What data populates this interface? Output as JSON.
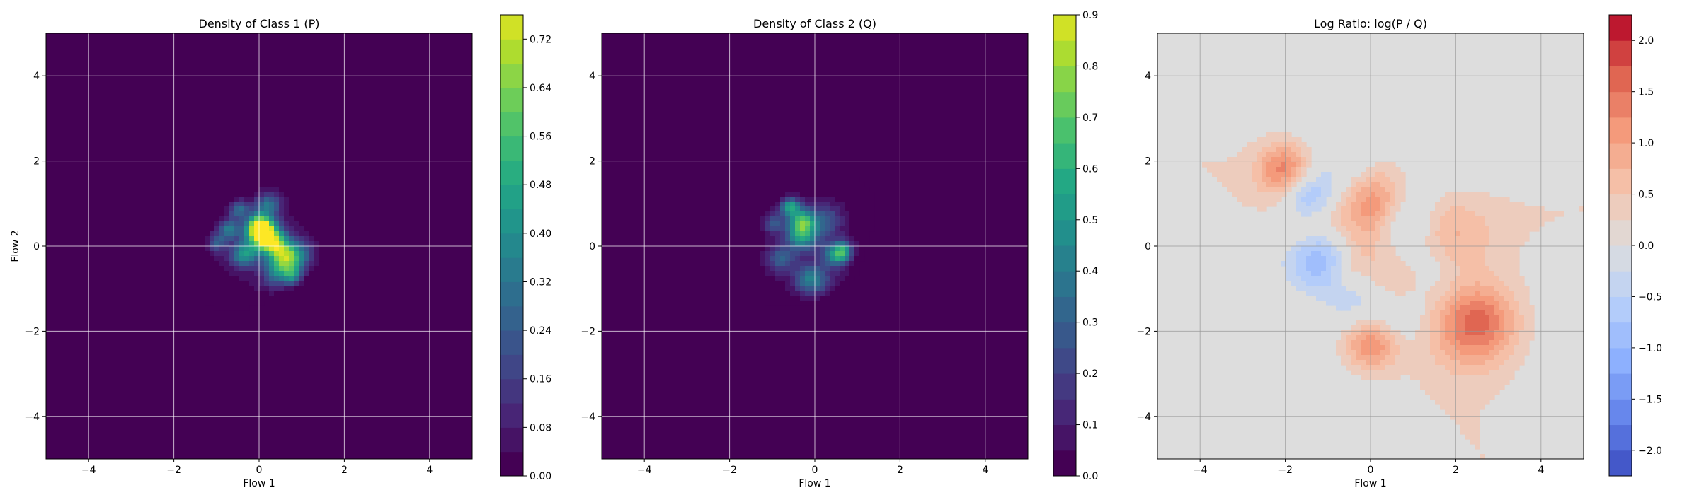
{
  "chart_data": [
    {
      "type": "heatmap",
      "title": "Density of Class 1 (P)",
      "xlabel": "Flow 1",
      "ylabel": "Flow 2",
      "xlim": [
        -5,
        5
      ],
      "ylim": [
        -5,
        5
      ],
      "xticks": [
        -4,
        -2,
        0,
        2,
        4
      ],
      "yticks": [
        -4,
        -2,
        0,
        2,
        4
      ],
      "xtick_labels": [
        "−4",
        "−2",
        "0",
        "2",
        "4"
      ],
      "ytick_labels": [
        "−4",
        "−2",
        "0",
        "2",
        "4"
      ],
      "grid": true,
      "colormap": "viridis",
      "colorbar": {
        "range": [
          0,
          0.76
        ],
        "ticks": [
          0.0,
          0.08,
          0.16,
          0.24,
          0.32,
          0.4,
          0.48,
          0.56,
          0.64,
          0.72
        ],
        "tick_labels": [
          "0.00",
          "0.08",
          "0.16",
          "0.24",
          "0.32",
          "0.40",
          "0.48",
          "0.56",
          "0.64",
          "0.72"
        ],
        "levels": 19
      },
      "clusters": [
        {
          "x": -0.5,
          "y": 0.9,
          "amp": 0.38
        },
        {
          "x": 0.0,
          "y": 0.45,
          "amp": 0.55
        },
        {
          "x": 0.1,
          "y": 0.25,
          "amp": 0.6
        },
        {
          "x": -0.7,
          "y": 0.4,
          "amp": 0.35
        },
        {
          "x": 0.35,
          "y": 0.05,
          "amp": 0.4
        },
        {
          "x": 0.7,
          "y": -0.25,
          "amp": 0.55
        },
        {
          "x": 0.85,
          "y": -0.75,
          "amp": 0.58
        },
        {
          "x": -0.35,
          "y": -0.2,
          "amp": 0.38
        },
        {
          "x": 0.45,
          "y": -0.6,
          "amp": 0.32
        },
        {
          "x": -1.0,
          "y": 0.1,
          "amp": 0.25
        },
        {
          "x": 0.2,
          "y": 1.0,
          "amp": 0.3
        },
        {
          "x": 1.2,
          "y": -0.35,
          "amp": 0.22
        }
      ]
    },
    {
      "type": "heatmap",
      "title": "Density of Class 2 (Q)",
      "xlabel": "Flow 1",
      "ylabel": "",
      "xlim": [
        -5,
        5
      ],
      "ylim": [
        -5,
        5
      ],
      "xticks": [
        -4,
        -2,
        0,
        2,
        4
      ],
      "yticks": [
        -4,
        -2,
        0,
        2,
        4
      ],
      "xtick_labels": [
        "−4",
        "−2",
        "0",
        "2",
        "4"
      ],
      "ytick_labels": [
        "−4",
        "−2",
        "0",
        "2",
        "4"
      ],
      "grid": true,
      "colormap": "viridis",
      "colorbar": {
        "range": [
          0,
          0.9
        ],
        "ticks": [
          0.0,
          0.1,
          0.2,
          0.3,
          0.4,
          0.5,
          0.6,
          0.7,
          0.8,
          0.9
        ],
        "tick_labels": [
          "0.0",
          "0.1",
          "0.2",
          "0.3",
          "0.4",
          "0.5",
          "0.6",
          "0.7",
          "0.8",
          "0.9"
        ],
        "levels": 18
      },
      "clusters": [
        {
          "x": -0.6,
          "y": 0.95,
          "amp": 0.62
        },
        {
          "x": -0.3,
          "y": 0.6,
          "amp": 0.45
        },
        {
          "x": -0.3,
          "y": 0.25,
          "amp": 0.5
        },
        {
          "x": -1.0,
          "y": 0.55,
          "amp": 0.3
        },
        {
          "x": 0.5,
          "y": -0.2,
          "amp": 0.48
        },
        {
          "x": -0.1,
          "y": -0.8,
          "amp": 0.42
        },
        {
          "x": 0.7,
          "y": -0.15,
          "amp": 0.38
        },
        {
          "x": 1.0,
          "y": -0.85,
          "amp": 0.3
        },
        {
          "x": 0.35,
          "y": -1.1,
          "amp": 0.28
        },
        {
          "x": -1.4,
          "y": 1.05,
          "amp": 0.25
        },
        {
          "x": -0.8,
          "y": -0.3,
          "amp": 0.28
        },
        {
          "x": 0.25,
          "y": 0.6,
          "amp": 0.25
        }
      ]
    },
    {
      "type": "heatmap",
      "title": "Log Ratio: log(P / Q)",
      "xlabel": "Flow 1",
      "ylabel": "",
      "xlim": [
        -5,
        5
      ],
      "ylim": [
        -5,
        5
      ],
      "xticks": [
        -4,
        -2,
        0,
        2,
        4
      ],
      "yticks": [
        -4,
        -2,
        0,
        2,
        4
      ],
      "xtick_labels": [
        "−4",
        "−2",
        "0",
        "2",
        "4"
      ],
      "ytick_labels": [
        "−4",
        "−2",
        "0",
        "2",
        "4"
      ],
      "grid": true,
      "colormap": "coolwarm",
      "colorbar": {
        "range": [
          -2.25,
          2.25
        ],
        "ticks": [
          -2.0,
          -1.5,
          -1.0,
          -0.5,
          0.0,
          0.5,
          1.0,
          1.5,
          2.0
        ],
        "tick_labels": [
          "−2.0",
          "−1.5",
          "−1.0",
          "−0.5",
          "0.0",
          "0.5",
          "1.0",
          "1.5",
          "2.0"
        ],
        "levels": 18
      },
      "clusters": [
        {
          "x": -2.0,
          "y": 1.8,
          "amp": 1.3
        },
        {
          "x": 0.0,
          "y": 1.2,
          "amp": 1.2
        },
        {
          "x": 0.0,
          "y": 0.3,
          "amp": 1.0
        },
        {
          "x": -0.5,
          "y": -0.5,
          "amp": 0.9
        },
        {
          "x": 0.6,
          "y": -0.8,
          "amp": 1.0
        },
        {
          "x": 2.5,
          "y": -1.8,
          "amp": 1.6
        },
        {
          "x": 0.0,
          "y": -2.3,
          "amp": 1.3
        },
        {
          "x": -1.3,
          "y": 0.5,
          "amp": 0.8
        },
        {
          "x": 1.8,
          "y": 0.2,
          "amp": 0.7
        },
        {
          "x": -1.5,
          "y": 1.1,
          "amp": -1.2
        },
        {
          "x": -1.1,
          "y": -0.2,
          "amp": -1.4
        },
        {
          "x": -0.3,
          "y": 1.5,
          "amp": -0.7
        },
        {
          "x": 0.9,
          "y": 0.6,
          "amp": -0.6
        },
        {
          "x": 1.2,
          "y": -0.5,
          "amp": -0.6
        },
        {
          "x": -0.2,
          "y": -0.9,
          "amp": -0.8
        },
        {
          "x": 0.7,
          "y": -1.6,
          "amp": -0.5
        },
        {
          "x": 0.4,
          "y": 0.2,
          "amp": -0.5
        }
      ]
    }
  ]
}
